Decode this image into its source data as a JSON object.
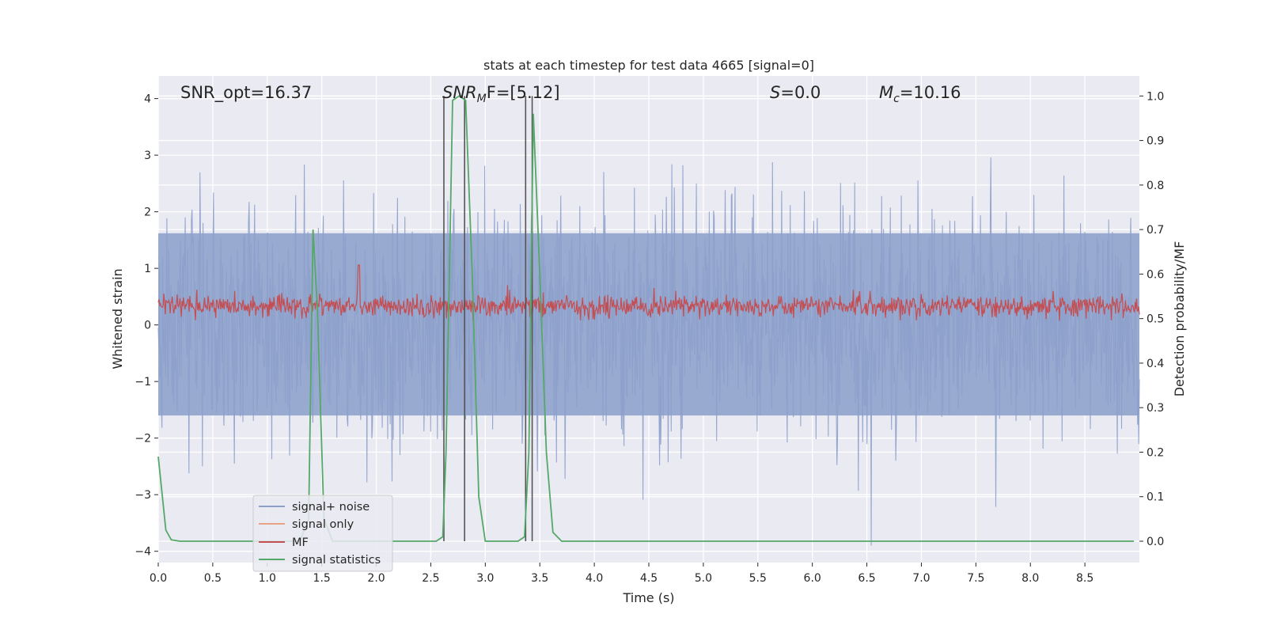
{
  "chart_data": {
    "type": "line",
    "title": "stats at each timestep for test data 4665 [signal=0]",
    "xlabel": "Time (s)",
    "ylabel_left": "Whitened strain",
    "ylabel_right": "Detection probability/MF",
    "xlim": [
      0.0,
      9.0
    ],
    "ylim_left": [
      -4.2,
      4.4
    ],
    "ylim_right": [
      -0.048,
      1.045
    ],
    "xticks": [
      "0.0",
      "0.5",
      "1.0",
      "1.5",
      "2.0",
      "2.5",
      "3.0",
      "3.5",
      "4.0",
      "4.5",
      "5.0",
      "5.5",
      "6.0",
      "6.5",
      "7.0",
      "7.5",
      "8.0",
      "8.5"
    ],
    "yticks_left": [
      "−4",
      "−3",
      "−2",
      "−1",
      "0",
      "1",
      "2",
      "3",
      "4"
    ],
    "yticks_right": [
      "0.0",
      "0.1",
      "0.2",
      "0.3",
      "0.4",
      "0.5",
      "0.6",
      "0.7",
      "0.8",
      "0.9",
      "1.0"
    ],
    "grid": true,
    "legend_position": "lower-left",
    "annotations": {
      "snr_opt": "SNR_opt=16.37",
      "snr_mf_italic": "SNR",
      "snr_mf_sub": "M",
      "snr_mf_rest": "F=[5.12]",
      "s_italic": "S",
      "s_rest": "=0.0",
      "mc_italic": "M",
      "mc_sub": "c",
      "mc_rest": "=10.16"
    },
    "series": [
      {
        "name": "signal+ noise",
        "color": "#8da0cb",
        "style": "noise band approx. amplitude ±1.6, peaks to ±4.0"
      },
      {
        "name": "signal only",
        "color": "#e8a384",
        "values": []
      },
      {
        "name": "MF",
        "color": "#c44e52",
        "style": "noise around 0.53 on right axis, spike 0.62 at t=1.84"
      },
      {
        "name": "signal statistics",
        "color": "#55a868",
        "x": [
          0.0,
          0.07,
          0.12,
          0.2,
          1.3,
          1.38,
          1.42,
          1.46,
          1.52,
          1.6,
          2.55,
          2.61,
          2.64,
          2.7,
          2.76,
          2.82,
          2.88,
          2.94,
          3.0,
          3.3,
          3.36,
          3.4,
          3.44,
          3.5,
          3.56,
          3.62,
          3.7,
          8.95
        ],
        "y": [
          0.19,
          0.025,
          0.003,
          0.0,
          0.0,
          0.05,
          0.7,
          0.52,
          0.05,
          0.0,
          0.0,
          0.01,
          0.2,
          0.99,
          1.0,
          0.99,
          0.6,
          0.1,
          0.0,
          0.0,
          0.01,
          0.2,
          0.96,
          0.6,
          0.2,
          0.02,
          0.0,
          0.0
        ]
      }
    ],
    "vertical_lines_x": [
      2.62,
      2.81,
      3.37,
      3.43
    ]
  }
}
